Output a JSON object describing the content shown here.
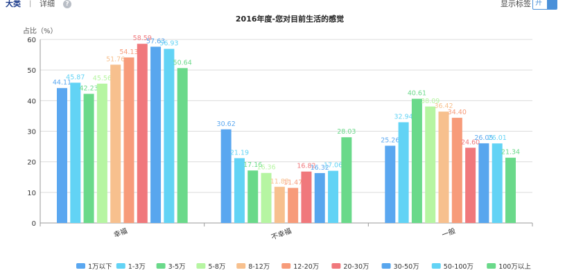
{
  "topbar": {
    "tab_major": "大类",
    "separator": "|",
    "tab_detail": "详细",
    "help_icon": "?",
    "show_label": "显示标签",
    "toggle_text": "开"
  },
  "chart_data": {
    "type": "bar",
    "title": "2016年度-您对目前生活的感觉",
    "ylabel": "占比（%）",
    "xlabel": "",
    "ylim": [
      0,
      60
    ],
    "yticks": [
      0,
      10,
      20,
      30,
      40,
      50,
      60
    ],
    "grid": true,
    "legend_position": "bottom",
    "categories": [
      "幸福",
      "不幸福",
      "一般"
    ],
    "series": [
      {
        "name": "1万以下",
        "color": "#5aa7f0",
        "values": [
          44.11,
          30.62,
          25.26
        ]
      },
      {
        "name": "1-3万",
        "color": "#62d3f5",
        "values": [
          45.87,
          21.19,
          32.94
        ]
      },
      {
        "name": "3-5万",
        "color": "#6ad98a",
        "values": [
          42.23,
          17.16,
          40.61
        ]
      },
      {
        "name": "5-8万",
        "color": "#b6f5a2",
        "values": [
          45.56,
          16.36,
          38.09
        ]
      },
      {
        "name": "8-12万",
        "color": "#f7c08e",
        "values": [
          51.76,
          11.83,
          36.42
        ]
      },
      {
        "name": "12-20万",
        "color": "#f79b7a",
        "values": [
          54.13,
          11.47,
          34.4
        ]
      },
      {
        "name": "20-30万",
        "color": "#f0787c",
        "values": [
          58.59,
          16.82,
          24.6
        ]
      },
      {
        "name": "30-50万",
        "color": "#58a6ee",
        "values": [
          57.63,
          16.32,
          26.05
        ]
      },
      {
        "name": "50-100万",
        "color": "#62d3f5",
        "values": [
          56.93,
          17.06,
          26.01
        ]
      },
      {
        "name": "100万以上",
        "color": "#6ad98a",
        "values": [
          50.64,
          28.03,
          21.34
        ]
      }
    ]
  }
}
